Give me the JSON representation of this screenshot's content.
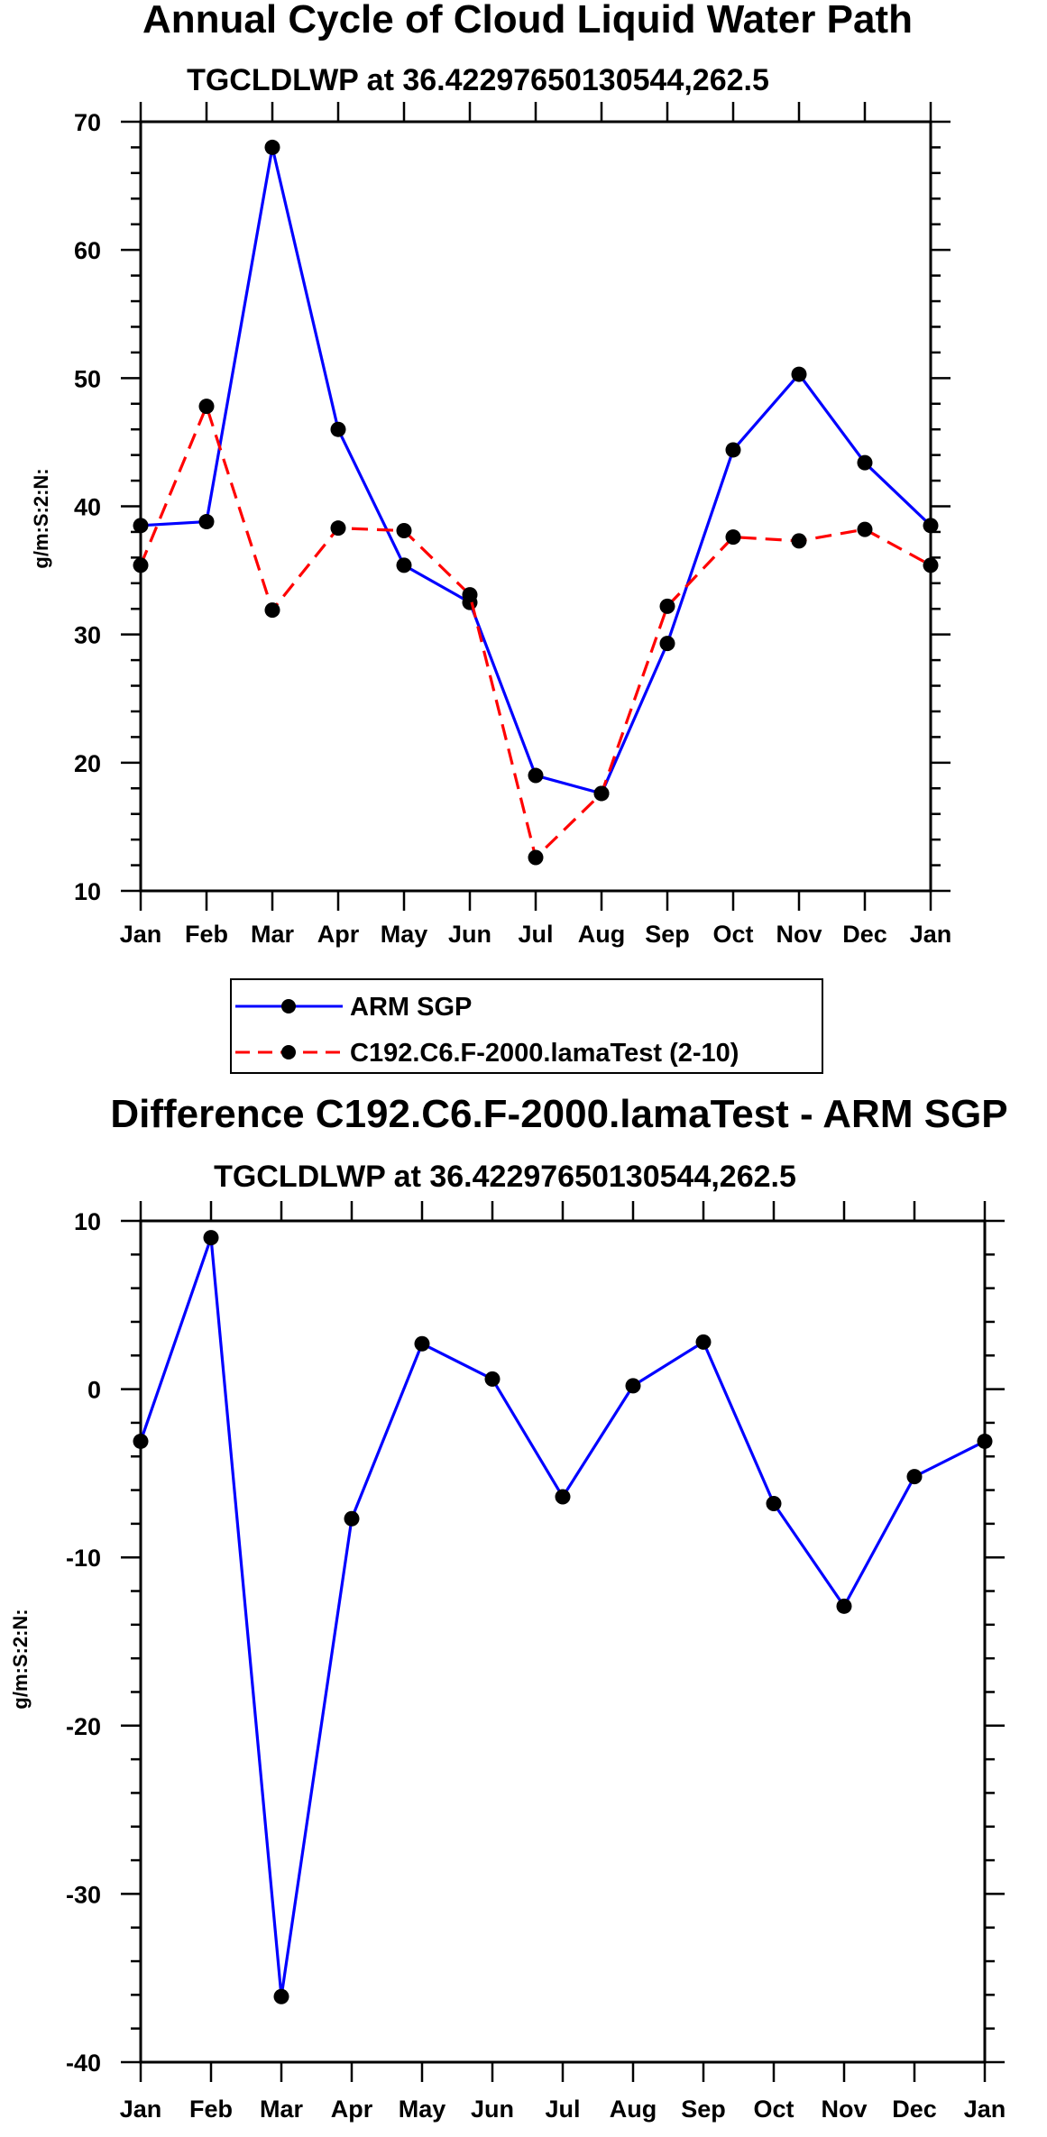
{
  "colors": {
    "obs": "#0000ff",
    "model": "#ff0000",
    "marker": "#000000"
  },
  "chart_data": [
    {
      "type": "line",
      "title": "Annual Cycle of Cloud Liquid Water Path",
      "subtitle": "TGCLDLWP at 36.42297650130544,262.5",
      "xlabel": "",
      "ylabel": "g/m:S:2:N:",
      "categories": [
        "Jan",
        "Feb",
        "Mar",
        "Apr",
        "May",
        "Jun",
        "Jul",
        "Aug",
        "Sep",
        "Oct",
        "Nov",
        "Dec",
        "Jan"
      ],
      "ylim": [
        10,
        70
      ],
      "yticks": [
        10,
        20,
        30,
        40,
        50,
        60,
        70
      ],
      "ytick_labels": [
        "10",
        "20",
        "30",
        "40",
        "50",
        "60",
        "70"
      ],
      "series": [
        {
          "name": "ARM SGP",
          "style": "solid",
          "color": "#0000ff",
          "values": [
            38.5,
            38.8,
            68.0,
            46.0,
            35.4,
            32.5,
            19.0,
            17.6,
            29.3,
            44.4,
            50.3,
            43.4,
            38.5
          ]
        },
        {
          "name": "C192.C6.F-2000.lamaTest (2-10)",
          "style": "dashed",
          "color": "#ff0000",
          "values": [
            35.4,
            47.8,
            31.9,
            38.3,
            38.1,
            33.1,
            12.6,
            17.6,
            32.2,
            37.6,
            37.3,
            38.2,
            35.4
          ]
        }
      ],
      "legend": {
        "entries": [
          "ARM SGP",
          "C192.C6.F-2000.lamaTest (2-10)"
        ],
        "placement": "bottom-center"
      }
    },
    {
      "type": "line",
      "title": "Difference C192.C6.F-2000.lamaTest - ARM SGP",
      "subtitle": "TGCLDLWP at 36.42297650130544,262.5",
      "xlabel": "",
      "ylabel": "g/m:S:2:N:",
      "categories": [
        "Jan",
        "Feb",
        "Mar",
        "Apr",
        "May",
        "Jun",
        "Jul",
        "Aug",
        "Sep",
        "Oct",
        "Nov",
        "Dec",
        "Jan"
      ],
      "ylim": [
        -40,
        10
      ],
      "yticks": [
        -40,
        -30,
        -20,
        -10,
        0,
        10
      ],
      "ytick_labels": [
        "-40",
        "-30",
        "-20",
        "-10",
        "0",
        "10"
      ],
      "series": [
        {
          "name": "Difference",
          "style": "solid",
          "color": "#0000ff",
          "values": [
            -3.1,
            9.0,
            -36.1,
            -7.7,
            2.7,
            0.6,
            -6.4,
            0.2,
            2.8,
            -6.8,
            -12.9,
            -5.2,
            -3.1
          ]
        }
      ]
    }
  ]
}
